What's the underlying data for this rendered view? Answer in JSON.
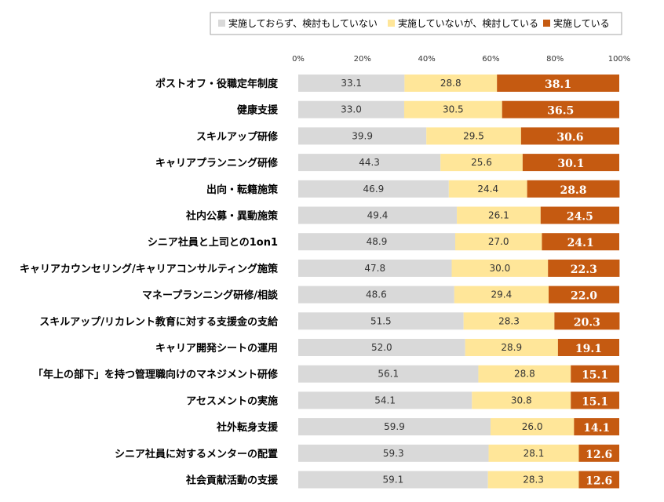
{
  "chart_data": {
    "type": "bar",
    "orientation": "horizontal",
    "stacked": true,
    "categories": [
      "ポストオフ・役職定年制度",
      "健康支援",
      "スキルアップ研修",
      "キャリアプランニング研修",
      "出向・転籍施策",
      "社内公募・異動施策",
      "シニア社員と上司との1on1",
      "キャリアカウンセリング/キャリアコンサルティング施策",
      "マネープランニング研修/相談",
      "スキルアップ/リカレント教育に対する支援金の支給",
      "キャリア開発シートの運用",
      "「年上の部下」を持つ管理職向けのマネジメント研修",
      "アセスメントの実施",
      "社外転身支援",
      "シニア社員に対するメンターの配置",
      "社会貢献活動の支援"
    ],
    "series": [
      {
        "name": "実施しておらず、検討もしていない",
        "color": "#d9d9d9",
        "values": [
          33.1,
          33.0,
          39.9,
          44.3,
          46.9,
          49.4,
          48.9,
          47.8,
          48.6,
          51.5,
          52.0,
          56.1,
          54.1,
          59.9,
          59.3,
          59.1
        ]
      },
      {
        "name": "実施していないが、検討している",
        "color": "#ffe699",
        "values": [
          28.8,
          30.5,
          29.5,
          25.6,
          24.4,
          26.1,
          27.0,
          30.0,
          29.4,
          28.3,
          28.9,
          28.8,
          30.8,
          26.0,
          28.1,
          28.3
        ]
      },
      {
        "name": "実施している",
        "color": "#c55a11",
        "values": [
          38.1,
          36.5,
          30.6,
          30.1,
          28.8,
          24.5,
          24.1,
          22.3,
          22.0,
          20.3,
          19.1,
          15.1,
          15.1,
          14.1,
          12.6,
          12.6
        ]
      }
    ],
    "xlim": [
      0,
      100
    ],
    "xticks": [
      "0%",
      "20%",
      "40%",
      "60%",
      "80%",
      "100%"
    ],
    "legend_position": "top",
    "grid": false
  }
}
